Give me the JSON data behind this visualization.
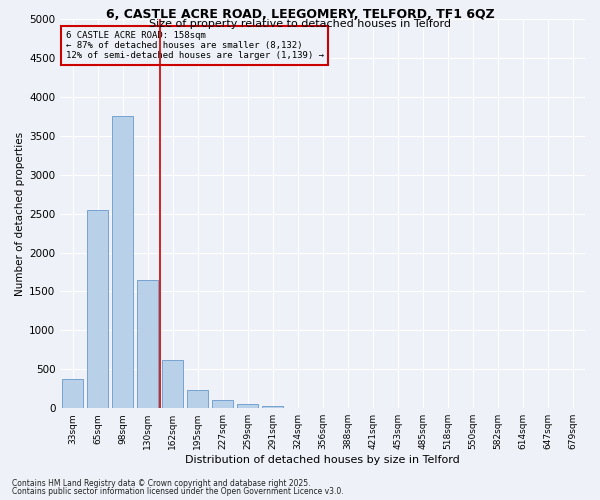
{
  "title1": "6, CASTLE ACRE ROAD, LEEGOMERY, TELFORD, TF1 6QZ",
  "title2": "Size of property relative to detached houses in Telford",
  "xlabel": "Distribution of detached houses by size in Telford",
  "ylabel": "Number of detached properties",
  "categories": [
    "33sqm",
    "65sqm",
    "98sqm",
    "130sqm",
    "162sqm",
    "195sqm",
    "227sqm",
    "259sqm",
    "291sqm",
    "324sqm",
    "356sqm",
    "388sqm",
    "421sqm",
    "453sqm",
    "485sqm",
    "518sqm",
    "550sqm",
    "582sqm",
    "614sqm",
    "647sqm",
    "679sqm"
  ],
  "values": [
    380,
    2540,
    3750,
    1650,
    620,
    235,
    105,
    50,
    30,
    0,
    0,
    0,
    0,
    0,
    0,
    0,
    0,
    0,
    0,
    0,
    0
  ],
  "bar_color": "#b8d0e8",
  "bar_edge_color": "#6699cc",
  "vline_color": "#cc0000",
  "annotation_line1": "6 CASTLE ACRE ROAD: 158sqm",
  "annotation_line2": "← 87% of detached houses are smaller (8,132)",
  "annotation_line3": "12% of semi-detached houses are larger (1,139) →",
  "annotation_box_color": "#cc0000",
  "ylim": [
    0,
    5000
  ],
  "yticks": [
    0,
    500,
    1000,
    1500,
    2000,
    2500,
    3000,
    3500,
    4000,
    4500,
    5000
  ],
  "bg_color": "#eef2f8",
  "grid_color": "#ffffff",
  "footer1": "Contains HM Land Registry data © Crown copyright and database right 2025.",
  "footer2": "Contains public sector information licensed under the Open Government Licence v3.0."
}
